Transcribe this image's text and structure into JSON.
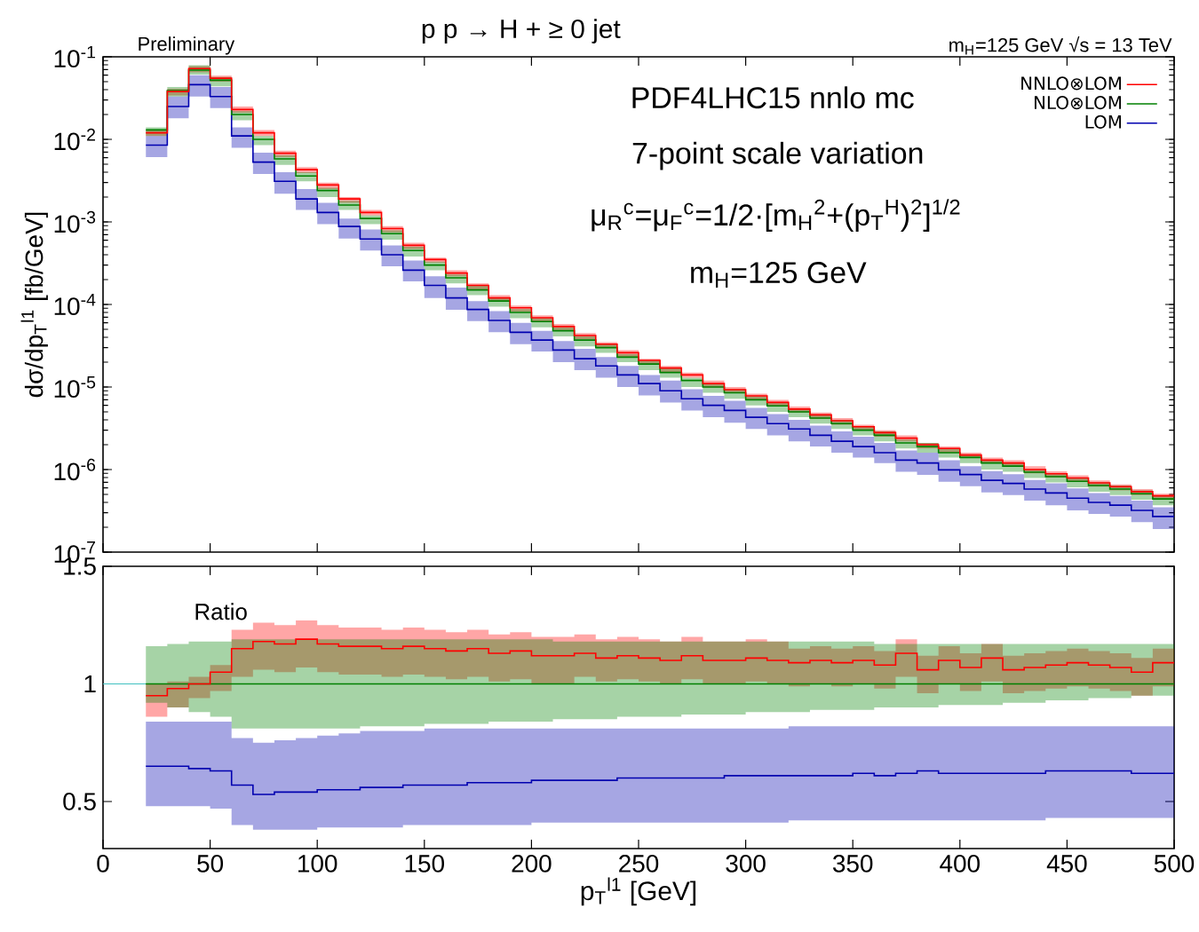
{
  "chart_data": [
    {
      "type": "step",
      "title": "p p → H + ≥ 0 jet",
      "ylabel": "dσ/dp$_{T}$$^{l1}$ [fb/GeV]",
      "annotations": [
        "Preliminary",
        "m$_{H}$=125 GeV √s = 13 TeV",
        "PDF4LHC15 nnlo mc",
        "7-point scale variation",
        "μ$_{R}$$^{c}$=μ$_{F}$$^{c}$=1/2·[m$_{H}$$^{2}$+(p$_{T}$$^{H}$)$^{2}$]$^{1/2}$",
        "m$_{H}$=125 GeV"
      ],
      "x": [
        20,
        30,
        40,
        50,
        60,
        70,
        80,
        90,
        100,
        110,
        120,
        130,
        140,
        150,
        160,
        170,
        180,
        190,
        200,
        210,
        220,
        230,
        240,
        250,
        260,
        270,
        280,
        290,
        300,
        310,
        320,
        330,
        340,
        350,
        360,
        370,
        380,
        390,
        400,
        410,
        420,
        430,
        440,
        450,
        460,
        470,
        480,
        490,
        500
      ],
      "xlim": [
        0,
        500
      ],
      "xticks": [
        0,
        50,
        100,
        150,
        200,
        250,
        300,
        350,
        400,
        450,
        500
      ],
      "ylim": [
        1e-07,
        0.1
      ],
      "log": "y",
      "yticks": [
        {
          "value": 1e-07,
          "label": "10$^{-7}$"
        },
        {
          "value": 1e-06,
          "label": "10$^{-6}$"
        },
        {
          "value": 1e-05,
          "label": "10$^{-5}$"
        },
        {
          "value": 0.0001,
          "label": "10$^{-4}$"
        },
        {
          "value": 0.001,
          "label": "10$^{-3}$"
        },
        {
          "value": 0.01,
          "label": "10$^{-2}$"
        },
        {
          "value": 0.1,
          "label": "10$^{-1}$"
        }
      ],
      "tick_labels": "y",
      "legend": "top right",
      "series": [
        {
          "name": "NNLO⊗LOM",
          "color": "#ff0000",
          "values": [
            0.012,
            0.038,
            0.072,
            0.055,
            0.023,
            0.012,
            0.0068,
            0.0043,
            0.0028,
            0.0019,
            0.0013,
            0.00083,
            0.00052,
            0.00035,
            0.00024,
            0.00017,
            0.00012,
            9.1e-05,
            6.9e-05,
            5.4e-05,
            4.2e-05,
            3.3e-05,
            2.6e-05,
            2.1e-05,
            1.7e-05,
            1.4e-05,
            1.1e-05,
            9.3e-06,
            7.8e-06,
            6.5e-06,
            5.4e-06,
            4.6e-06,
            3.9e-06,
            3.3e-06,
            2.8e-06,
            2.4e-06,
            2e-06,
            1.8e-06,
            1.5e-06,
            1.3e-06,
            1.2e-06,
            1e-06,
            8.9e-07,
            7.9e-07,
            6.9e-07,
            6.2e-07,
            5.4e-07,
            4.8e-07,
            4.8e-07
          ],
          "lower": [
            0.011,
            0.034,
            0.065,
            0.05,
            0.021,
            0.011,
            0.0061,
            0.0039,
            0.0025,
            0.0017,
            0.0012,
            0.00075,
            0.00047,
            0.00032,
            0.00022,
            0.00015,
            0.00011,
            8.2e-05,
            6.2e-05,
            4.9e-05,
            3.8e-05,
            3e-05,
            2.3e-05,
            1.9e-05,
            1.5e-05,
            1.3e-05,
            9.9e-06,
            8.4e-06,
            7e-06,
            5.9e-06,
            4.9e-06,
            4.1e-06,
            3.5e-06,
            3e-06,
            2.5e-06,
            2.2e-06,
            1.8e-06,
            1.6e-06,
            1.4e-06,
            1.2e-06,
            1.1e-06,
            9e-07,
            8e-07,
            7.1e-07,
            6.2e-07,
            5.6e-07,
            4.9e-07,
            4.3e-07,
            4.3e-07
          ],
          "upper": [
            0.013,
            0.041,
            0.077,
            0.059,
            0.025,
            0.013,
            0.0073,
            0.0046,
            0.003,
            0.002,
            0.0014,
            0.00089,
            0.00056,
            0.00037,
            0.00026,
            0.00018,
            0.00013,
            9.7e-05,
            7.4e-05,
            5.8e-05,
            4.5e-05,
            3.5e-05,
            2.8e-05,
            2.2e-05,
            1.8e-05,
            1.5e-05,
            1.2e-05,
            1e-05,
            8.3e-06,
            7e-06,
            5.8e-06,
            4.9e-06,
            4.2e-06,
            3.5e-06,
            3e-06,
            2.6e-06,
            2.1e-06,
            1.9e-06,
            1.6e-06,
            1.4e-06,
            1.3e-06,
            1.1e-06,
            9.5e-07,
            8.5e-07,
            7.4e-07,
            6.6e-07,
            5.8e-07,
            5.1e-07,
            5.1e-07
          ]
        },
        {
          "name": "NLO⊗LOM",
          "color": "#008000",
          "values": [
            0.013,
            0.039,
            0.069,
            0.052,
            0.02,
            0.01,
            0.0058,
            0.0036,
            0.0024,
            0.0016,
            0.0011,
            0.00072,
            0.00045,
            0.0003,
            0.00021,
            0.00015,
            0.00011,
            8e-05,
            6.2e-05,
            4.8e-05,
            3.7e-05,
            3e-05,
            2.3e-05,
            1.9e-05,
            1.5e-05,
            1.2e-05,
            1e-05,
            8.5e-06,
            7e-06,
            5.9e-06,
            5e-06,
            4.2e-06,
            3.6e-06,
            3e-06,
            2.6e-06,
            2.1e-06,
            1.9e-06,
            1.6e-06,
            1.4e-06,
            1.2e-06,
            1.1e-06,
            9.3e-07,
            8.2e-07,
            7.2e-07,
            6.4e-07,
            5.8e-07,
            5.1e-07,
            4.4e-07,
            4.4e-07
          ],
          "lower": [
            0.011,
            0.033,
            0.061,
            0.044,
            0.017,
            0.0085,
            0.0049,
            0.0031,
            0.002,
            0.0014,
            0.00094,
            0.00061,
            0.00038,
            0.00026,
            0.00018,
            0.00013,
            9.4e-05,
            6.8e-05,
            5.3e-05,
            4.1e-05,
            3.1e-05,
            2.6e-05,
            2e-05,
            1.6e-05,
            1.3e-05,
            1e-05,
            8.5e-06,
            7.2e-06,
            6e-06,
            5e-06,
            4.3e-06,
            3.6e-06,
            3.1e-06,
            2.6e-06,
            2.2e-06,
            1.8e-06,
            1.6e-06,
            1.4e-06,
            1.2e-06,
            1e-06,
            9.4e-07,
            7.9e-07,
            7e-07,
            6.1e-07,
            5.4e-07,
            4.9e-07,
            4.3e-07,
            3.7e-07,
            3.7e-07
          ],
          "upper": [
            0.014,
            0.043,
            0.079,
            0.057,
            0.022,
            0.011,
            0.0064,
            0.004,
            0.0026,
            0.0018,
            0.0012,
            0.00079,
            0.0005,
            0.00033,
            0.00023,
            0.00017,
            0.00012,
            8.8e-05,
            6.8e-05,
            5.3e-05,
            4.1e-05,
            3.3e-05,
            2.5e-05,
            2.1e-05,
            1.7e-05,
            1.3e-05,
            1.1e-05,
            9.4e-06,
            7.7e-06,
            6.5e-06,
            5.5e-06,
            4.6e-06,
            4e-06,
            3.3e-06,
            2.9e-06,
            2.3e-06,
            2.1e-06,
            1.8e-06,
            1.5e-06,
            1.3e-06,
            1.2e-06,
            1e-06,
            9e-07,
            7.9e-07,
            7e-07,
            6.4e-07,
            5.6e-07,
            4.8e-07,
            4.8e-07
          ]
        },
        {
          "name": "LOM",
          "color": "#0000b0",
          "values": [
            0.0085,
            0.025,
            0.046,
            0.033,
            0.011,
            0.0053,
            0.0031,
            0.0019,
            0.0013,
            0.00088,
            0.00062,
            0.0004,
            0.00026,
            0.00017,
            0.00012,
            8.7e-05,
            6.4e-05,
            4.6e-05,
            3.7e-05,
            2.8e-05,
            2.2e-05,
            1.8e-05,
            1.4e-05,
            1.1e-05,
            9e-06,
            7.2e-06,
            6e-06,
            5.2e-06,
            4.3e-06,
            3.6e-06,
            3.1e-06,
            2.6e-06,
            2.2e-06,
            1.9e-06,
            1.6e-06,
            1.3e-06,
            1.2e-06,
            9.9e-07,
            8.7e-07,
            7.4e-07,
            6.8e-07,
            5.8e-07,
            5.2e-07,
            4.5e-07,
            4e-07,
            3.7e-07,
            3.2e-07,
            2.7e-07,
            2.7e-07
          ],
          "lower": [
            0.0061,
            0.018,
            0.033,
            0.024,
            0.0079,
            0.0038,
            0.0022,
            0.0014,
            0.00094,
            0.00063,
            0.00045,
            0.00029,
            0.00019,
            0.00012,
            8.6e-05,
            6.3e-05,
            4.6e-05,
            3.3e-05,
            2.7e-05,
            2e-05,
            1.6e-05,
            1.3e-05,
            1e-05,
            7.9e-06,
            6.5e-06,
            5.2e-06,
            4.3e-06,
            3.7e-06,
            3.1e-06,
            2.6e-06,
            2.2e-06,
            1.9e-06,
            1.6e-06,
            1.4e-06,
            1.2e-06,
            9.4e-07,
            8.6e-07,
            7.1e-07,
            6.3e-07,
            5.3e-07,
            4.9e-07,
            4.2e-07,
            3.7e-07,
            3.2e-07,
            2.9e-07,
            2.7e-07,
            2.3e-07,
            1.9e-07,
            1.9e-07
          ],
          "upper": [
            0.011,
            0.033,
            0.06,
            0.043,
            0.014,
            0.0069,
            0.004,
            0.0025,
            0.0017,
            0.0011,
            0.00081,
            0.00052,
            0.00034,
            0.00022,
            0.00016,
            0.00011,
            8.3e-05,
            6e-05,
            4.8e-05,
            3.6e-05,
            2.9e-05,
            2.3e-05,
            1.8e-05,
            1.4e-05,
            1.2e-05,
            9.4e-06,
            7.8e-06,
            6.8e-06,
            5.6e-06,
            4.7e-06,
            4e-06,
            3.4e-06,
            2.9e-06,
            2.5e-06,
            2.1e-06,
            1.7e-06,
            1.6e-06,
            1.3e-06,
            1.1e-06,
            9.6e-07,
            8.8e-07,
            7.5e-07,
            6.8e-07,
            5.9e-07,
            5.2e-07,
            4.8e-07,
            4.2e-07,
            3.5e-07,
            3.5e-07
          ]
        }
      ]
    },
    {
      "type": "step",
      "xlabel": "p$_{T}$$^{l1}$ [GeV]",
      "annotations": [
        "Ratio"
      ],
      "x": [
        20,
        30,
        40,
        50,
        60,
        70,
        80,
        90,
        100,
        110,
        120,
        130,
        140,
        150,
        160,
        170,
        180,
        190,
        200,
        210,
        220,
        230,
        240,
        250,
        260,
        270,
        280,
        290,
        300,
        310,
        320,
        330,
        340,
        350,
        360,
        370,
        380,
        390,
        400,
        410,
        420,
        430,
        440,
        450,
        460,
        470,
        480,
        490,
        500
      ],
      "xlim": [
        0,
        500
      ],
      "xticks": [
        0,
        50,
        100,
        150,
        200,
        250,
        300,
        350,
        400,
        450,
        500
      ],
      "ylim": [
        0.3,
        1.5
      ],
      "yticks": [
        0.5,
        1,
        1.5
      ],
      "ref_lines": [
        {
          "axis": "y",
          "value": 1,
          "color": "#40c0c0"
        }
      ],
      "series": [
        {
          "color": "#ff0000",
          "values": [
            0.95,
            0.98,
            1.0,
            1.05,
            1.15,
            1.18,
            1.17,
            1.19,
            1.17,
            1.16,
            1.16,
            1.15,
            1.16,
            1.15,
            1.14,
            1.15,
            1.13,
            1.14,
            1.12,
            1.12,
            1.13,
            1.11,
            1.12,
            1.11,
            1.1,
            1.12,
            1.1,
            1.1,
            1.11,
            1.1,
            1.09,
            1.1,
            1.09,
            1.1,
            1.08,
            1.13,
            1.06,
            1.1,
            1.07,
            1.11,
            1.06,
            1.07,
            1.08,
            1.09,
            1.08,
            1.07,
            1.05,
            1.09,
            1.09
          ],
          "lower": [
            0.86,
            0.9,
            0.94,
            0.97,
            1.03,
            1.06,
            1.05,
            1.07,
            1.05,
            1.04,
            1.04,
            1.03,
            1.04,
            1.03,
            1.02,
            1.03,
            1.01,
            1.02,
            1.0,
            1.0,
            1.03,
            1.01,
            1.02,
            1.01,
            1.0,
            1.02,
            1.0,
            1.0,
            1.01,
            1.0,
            0.99,
            1.0,
            0.99,
            1.0,
            0.98,
            1.03,
            0.96,
            1.0,
            0.97,
            1.01,
            0.96,
            0.97,
            0.98,
            0.99,
            0.98,
            0.97,
            0.95,
            0.99,
            0.99
          ],
          "upper": [
            1.0,
            1.01,
            1.03,
            1.08,
            1.23,
            1.26,
            1.25,
            1.27,
            1.25,
            1.24,
            1.24,
            1.23,
            1.24,
            1.23,
            1.22,
            1.23,
            1.21,
            1.22,
            1.2,
            1.2,
            1.21,
            1.19,
            1.2,
            1.19,
            1.18,
            1.2,
            1.18,
            1.18,
            1.19,
            1.18,
            1.15,
            1.16,
            1.15,
            1.16,
            1.14,
            1.19,
            1.12,
            1.16,
            1.13,
            1.17,
            1.12,
            1.13,
            1.14,
            1.15,
            1.14,
            1.13,
            1.11,
            1.15,
            1.15
          ]
        },
        {
          "color": "#008000",
          "values": [
            1,
            1,
            1,
            1,
            1,
            1,
            1,
            1,
            1,
            1,
            1,
            1,
            1,
            1,
            1,
            1,
            1,
            1,
            1,
            1,
            1,
            1,
            1,
            1,
            1,
            1,
            1,
            1,
            1,
            1,
            1,
            1,
            1,
            1,
            1,
            1,
            1,
            1,
            1,
            1,
            1,
            1,
            1,
            1,
            1,
            1,
            1,
            1,
            1
          ],
          "lower": [
            0.92,
            0.9,
            0.88,
            0.86,
            0.81,
            0.81,
            0.81,
            0.81,
            0.81,
            0.81,
            0.82,
            0.82,
            0.82,
            0.83,
            0.83,
            0.83,
            0.84,
            0.84,
            0.84,
            0.85,
            0.85,
            0.85,
            0.86,
            0.86,
            0.86,
            0.87,
            0.87,
            0.87,
            0.88,
            0.88,
            0.88,
            0.89,
            0.89,
            0.89,
            0.9,
            0.9,
            0.9,
            0.91,
            0.91,
            0.91,
            0.92,
            0.92,
            0.93,
            0.93,
            0.94,
            0.94,
            0.95,
            0.95,
            0.95
          ],
          "upper": [
            1.16,
            1.17,
            1.18,
            1.18,
            1.19,
            1.19,
            1.19,
            1.19,
            1.19,
            1.19,
            1.19,
            1.19,
            1.19,
            1.19,
            1.19,
            1.19,
            1.19,
            1.19,
            1.19,
            1.18,
            1.18,
            1.18,
            1.18,
            1.18,
            1.18,
            1.18,
            1.18,
            1.18,
            1.18,
            1.18,
            1.18,
            1.18,
            1.18,
            1.18,
            1.17,
            1.17,
            1.17,
            1.17,
            1.17,
            1.17,
            1.17,
            1.17,
            1.17,
            1.17,
            1.17,
            1.17,
            1.17,
            1.17,
            1.17
          ]
        },
        {
          "color": "#0000b0",
          "values": [
            0.65,
            0.65,
            0.64,
            0.63,
            0.57,
            0.53,
            0.54,
            0.54,
            0.55,
            0.55,
            0.56,
            0.56,
            0.57,
            0.57,
            0.57,
            0.58,
            0.58,
            0.58,
            0.59,
            0.59,
            0.59,
            0.59,
            0.6,
            0.6,
            0.6,
            0.6,
            0.6,
            0.61,
            0.61,
            0.61,
            0.61,
            0.61,
            0.61,
            0.62,
            0.61,
            0.62,
            0.63,
            0.62,
            0.62,
            0.62,
            0.62,
            0.62,
            0.63,
            0.63,
            0.63,
            0.63,
            0.62,
            0.62,
            0.62
          ],
          "lower": [
            0.48,
            0.48,
            0.48,
            0.47,
            0.4,
            0.38,
            0.38,
            0.38,
            0.39,
            0.39,
            0.39,
            0.39,
            0.4,
            0.4,
            0.4,
            0.4,
            0.4,
            0.4,
            0.41,
            0.41,
            0.41,
            0.41,
            0.41,
            0.41,
            0.41,
            0.41,
            0.41,
            0.41,
            0.41,
            0.41,
            0.42,
            0.42,
            0.42,
            0.42,
            0.42,
            0.42,
            0.42,
            0.42,
            0.42,
            0.42,
            0.42,
            0.42,
            0.43,
            0.43,
            0.43,
            0.43,
            0.43,
            0.43,
            0.43
          ],
          "upper": [
            0.84,
            0.84,
            0.84,
            0.84,
            0.77,
            0.75,
            0.76,
            0.77,
            0.78,
            0.79,
            0.8,
            0.8,
            0.8,
            0.81,
            0.81,
            0.81,
            0.81,
            0.81,
            0.81,
            0.81,
            0.81,
            0.81,
            0.81,
            0.81,
            0.81,
            0.81,
            0.81,
            0.81,
            0.81,
            0.81,
            0.82,
            0.82,
            0.82,
            0.82,
            0.82,
            0.82,
            0.82,
            0.82,
            0.82,
            0.82,
            0.82,
            0.82,
            0.82,
            0.82,
            0.82,
            0.82,
            0.82,
            0.82,
            0.82
          ]
        }
      ]
    }
  ]
}
